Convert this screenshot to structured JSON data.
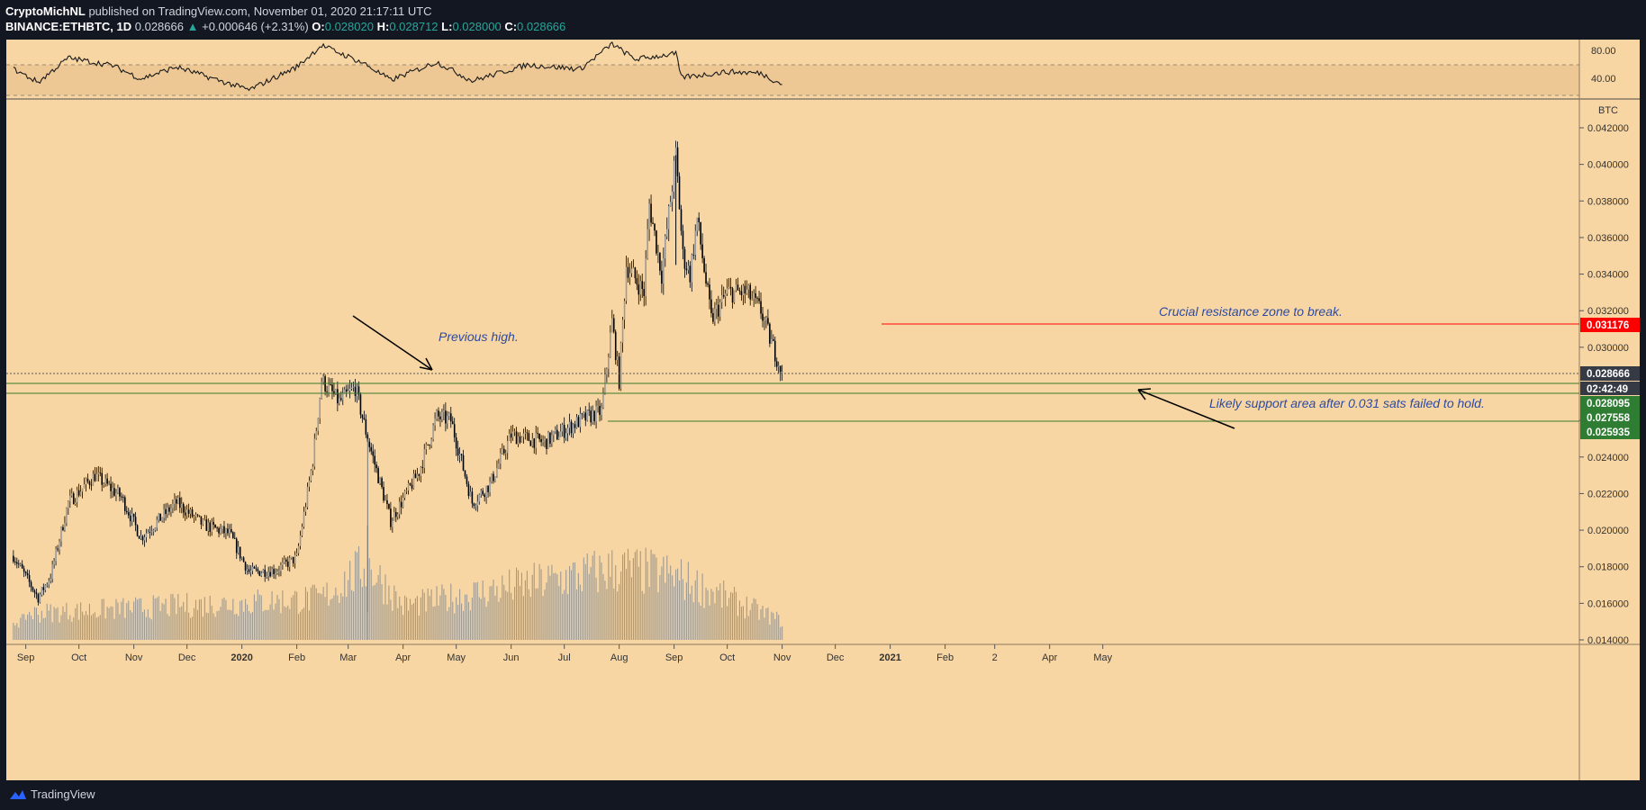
{
  "header": {
    "author": "CryptoMichNL",
    "published": " published on TradingView.com, November 01, 2020 21:17:11 UTC",
    "symbol": "BINANCE:ETHBTC, 1D",
    "last": "0.028666",
    "change": "+0.000646 (+2.31%)",
    "o_label": "O:",
    "o_val": "0.028020",
    "h_label": "H:",
    "h_val": "0.028712",
    "l_label": "L:",
    "l_val": "0.028000",
    "c_label": "C:",
    "c_val": "0.028666"
  },
  "footer": {
    "brand": "TradingView"
  },
  "colors": {
    "background": "#f8d6a3",
    "resistance": "#ff0000",
    "support": "#2e7d32",
    "annotation_text": "#2d4aa0"
  },
  "chart_data": {
    "type": "candlestick",
    "symbol": "BINANCE:ETHBTC",
    "interval": "1D",
    "currency": "BTC",
    "y_unit_label": "BTC",
    "ylim": [
      0.0138,
      0.0426
    ],
    "y_ticks": [
      "0.042000",
      "0.040000",
      "0.038000",
      "0.036000",
      "0.034000",
      "0.032000",
      "0.030000",
      "0.028666",
      "0.026000",
      "0.024000",
      "0.022000",
      "0.020000",
      "0.018000",
      "0.016000",
      "0.014000"
    ],
    "x_ticks": [
      "Sep",
      "Oct",
      "Nov",
      "Dec",
      "2020",
      "Feb",
      "Mar",
      "Apr",
      "May",
      "Jun",
      "Jul",
      "Aug",
      "Sep",
      "Oct",
      "Nov",
      "Dec",
      "2021",
      "Feb",
      "2",
      "Apr",
      "May"
    ],
    "close_path": [
      {
        "date": "2019-08-25",
        "close": 0.0186
      },
      {
        "date": "2019-09-08",
        "close": 0.0163
      },
      {
        "date": "2019-09-15",
        "close": 0.0175
      },
      {
        "date": "2019-09-25",
        "close": 0.0215
      },
      {
        "date": "2019-10-10",
        "close": 0.023
      },
      {
        "date": "2019-10-25",
        "close": 0.0218
      },
      {
        "date": "2019-11-05",
        "close": 0.0196
      },
      {
        "date": "2019-11-25",
        "close": 0.0215
      },
      {
        "date": "2019-12-10",
        "close": 0.0203
      },
      {
        "date": "2019-12-25",
        "close": 0.0198
      },
      {
        "date": "2020-01-05",
        "close": 0.0177
      },
      {
        "date": "2020-01-20",
        "close": 0.0178
      },
      {
        "date": "2020-02-01",
        "close": 0.0185
      },
      {
        "date": "2020-02-10",
        "close": 0.0238
      },
      {
        "date": "2020-02-15",
        "close": 0.0282
      },
      {
        "date": "2020-02-25",
        "close": 0.027
      },
      {
        "date": "2020-03-05",
        "close": 0.0278
      },
      {
        "date": "2020-03-12",
        "close": 0.025
      },
      {
        "date": "2020-03-25",
        "close": 0.0205
      },
      {
        "date": "2020-04-10",
        "close": 0.0232
      },
      {
        "date": "2020-04-20",
        "close": 0.0262
      },
      {
        "date": "2020-04-28",
        "close": 0.026
      },
      {
        "date": "2020-05-10",
        "close": 0.0215
      },
      {
        "date": "2020-05-20",
        "close": 0.0225
      },
      {
        "date": "2020-06-01",
        "close": 0.0252
      },
      {
        "date": "2020-06-20",
        "close": 0.0248
      },
      {
        "date": "2020-07-10",
        "close": 0.026
      },
      {
        "date": "2020-07-22",
        "close": 0.0265
      },
      {
        "date": "2020-07-28",
        "close": 0.0314
      },
      {
        "date": "2020-08-01",
        "close": 0.0282
      },
      {
        "date": "2020-08-05",
        "close": 0.0345
      },
      {
        "date": "2020-08-15",
        "close": 0.033
      },
      {
        "date": "2020-08-18",
        "close": 0.0378
      },
      {
        "date": "2020-08-25",
        "close": 0.034
      },
      {
        "date": "2020-09-02",
        "close": 0.0405
      },
      {
        "date": "2020-09-06",
        "close": 0.035
      },
      {
        "date": "2020-09-10",
        "close": 0.034
      },
      {
        "date": "2020-09-14",
        "close": 0.037
      },
      {
        "date": "2020-09-22",
        "close": 0.0315
      },
      {
        "date": "2020-10-01",
        "close": 0.033
      },
      {
        "date": "2020-10-12",
        "close": 0.033
      },
      {
        "date": "2020-10-20",
        "close": 0.032
      },
      {
        "date": "2020-10-25",
        "close": 0.0305
      },
      {
        "date": "2020-11-01",
        "close": 0.028666
      }
    ],
    "volume_profile": [
      {
        "date": "2019-09-01",
        "level": 0.35
      },
      {
        "date": "2020-02-15",
        "level": 0.55
      },
      {
        "date": "2020-03-12",
        "level": 1.0
      },
      {
        "date": "2020-04-01",
        "level": 0.45
      },
      {
        "date": "2020-08-01",
        "level": 0.95
      },
      {
        "date": "2020-09-01",
        "level": 0.85
      },
      {
        "date": "2020-11-01",
        "level": 0.25
      }
    ],
    "rsi_panel": {
      "ticks": [
        "80.00",
        "40.00"
      ],
      "band": [
        30,
        70
      ],
      "path": [
        {
          "date": "2019-08-25",
          "rsi": 52
        },
        {
          "date": "2019-09-08",
          "rsi": 33
        },
        {
          "date": "2019-09-25",
          "rsi": 68
        },
        {
          "date": "2019-10-20",
          "rsi": 57
        },
        {
          "date": "2019-11-05",
          "rsi": 38
        },
        {
          "date": "2019-11-25",
          "rsi": 55
        },
        {
          "date": "2020-01-05",
          "rsi": 22
        },
        {
          "date": "2020-02-01",
          "rsi": 55
        },
        {
          "date": "2020-02-15",
          "rsi": 86
        },
        {
          "date": "2020-03-10",
          "rsi": 60
        },
        {
          "date": "2020-03-25",
          "rsi": 36
        },
        {
          "date": "2020-04-20",
          "rsi": 62
        },
        {
          "date": "2020-05-10",
          "rsi": 35
        },
        {
          "date": "2020-06-10",
          "rsi": 58
        },
        {
          "date": "2020-07-10",
          "rsi": 52
        },
        {
          "date": "2020-07-28",
          "rsi": 88
        },
        {
          "date": "2020-08-10",
          "rsi": 66
        },
        {
          "date": "2020-09-02",
          "rsi": 74
        },
        {
          "date": "2020-09-05",
          "rsi": 40
        },
        {
          "date": "2020-10-01",
          "rsi": 48
        },
        {
          "date": "2020-10-20",
          "rsi": 46
        },
        {
          "date": "2020-11-01",
          "rsi": 30
        }
      ]
    },
    "levels": [
      {
        "name": "resistance",
        "value": 0.031176,
        "label": "0.031176",
        "color": "#ff0000"
      },
      {
        "name": "support-1",
        "value": 0.028095,
        "label": "0.028095",
        "color": "#2e7d32"
      },
      {
        "name": "support-2",
        "value": 0.027558,
        "label": "0.027558",
        "color": "#2e7d32"
      },
      {
        "name": "support-3",
        "value": 0.025935,
        "label": "0.025935",
        "color": "#2e7d32"
      },
      {
        "name": "last-price",
        "value": 0.028666,
        "label": "0.028666",
        "color": "#363a45"
      }
    ],
    "countdown": "02:42:49",
    "annotations": [
      {
        "name": "previous-high",
        "text": "Previous high."
      },
      {
        "name": "resistance-note",
        "text": "Crucial resistance zone to break."
      },
      {
        "name": "support-note",
        "text": "Likely support area after 0.031 sats failed to hold."
      }
    ]
  }
}
